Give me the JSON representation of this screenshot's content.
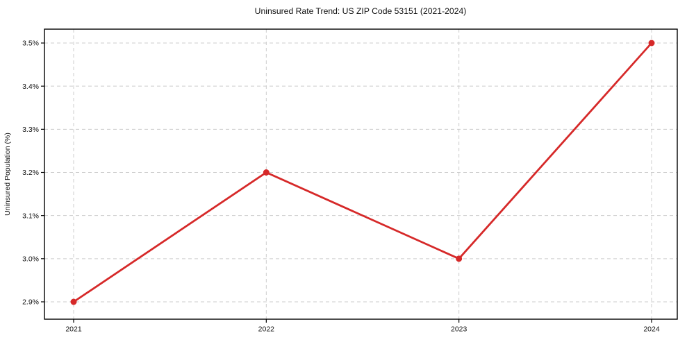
{
  "chart_data": {
    "type": "line",
    "title": "Uninsured Rate Trend: US ZIP Code 53151 (2021-2024)",
    "xlabel": "",
    "ylabel": "Uninsured Population (%)",
    "categories": [
      "2021",
      "2022",
      "2023",
      "2024"
    ],
    "series": [
      {
        "name": "Uninsured Rate",
        "values": [
          2.9,
          3.2,
          3.0,
          3.5
        ],
        "color": "#d62929",
        "marker": "circle"
      }
    ],
    "yticks": [
      2.9,
      3.0,
      3.1,
      3.2,
      3.3,
      3.4,
      3.5
    ],
    "ytick_labels": [
      "2.9%",
      "3.0%",
      "3.1%",
      "3.2%",
      "3.3%",
      "3.4%",
      "3.5%"
    ],
    "ylim": [
      2.86,
      3.53
    ],
    "grid": true,
    "grid_color": "#cccccc",
    "grid_style": "dashed",
    "legend": "none",
    "background": "#ffffff",
    "axis_color": "#000000",
    "text_color": "#111111"
  }
}
